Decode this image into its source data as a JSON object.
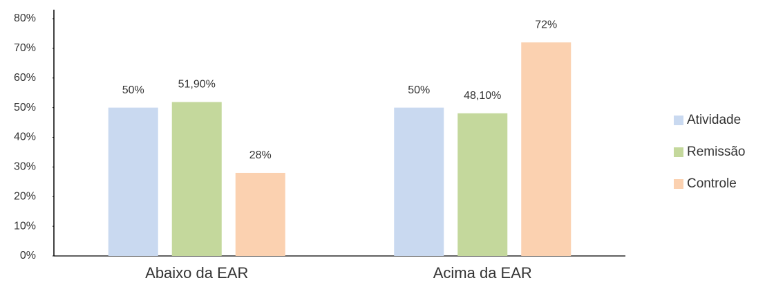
{
  "chart_data": {
    "type": "bar",
    "categories": [
      "Abaixo da EAR",
      "Acima da EAR"
    ],
    "series": [
      {
        "name": "Atividade",
        "color": "#c9d9f0",
        "values": [
          50,
          50
        ],
        "value_labels": [
          "50%",
          "50%"
        ]
      },
      {
        "name": "Remissão",
        "color": "#c4d89c",
        "values": [
          51.9,
          48.1
        ],
        "value_labels": [
          "51,90%",
          "48,10%"
        ]
      },
      {
        "name": "Controle",
        "color": "#fbd1b0",
        "values": [
          28,
          72
        ],
        "value_labels": [
          "28%",
          "72%"
        ]
      }
    ],
    "ylim": [
      0,
      80
    ],
    "yticks": [
      {
        "value": 0,
        "label": "0%"
      },
      {
        "value": 10,
        "label": "10%"
      },
      {
        "value": 20,
        "label": "20%"
      },
      {
        "value": 30,
        "label": "30%"
      },
      {
        "value": 40,
        "label": "40%"
      },
      {
        "value": 50,
        "label": "50%"
      },
      {
        "value": 60,
        "label": "60%"
      },
      {
        "value": 70,
        "label": "70%"
      },
      {
        "value": 80,
        "label": "80%"
      }
    ],
    "legend": "right"
  }
}
